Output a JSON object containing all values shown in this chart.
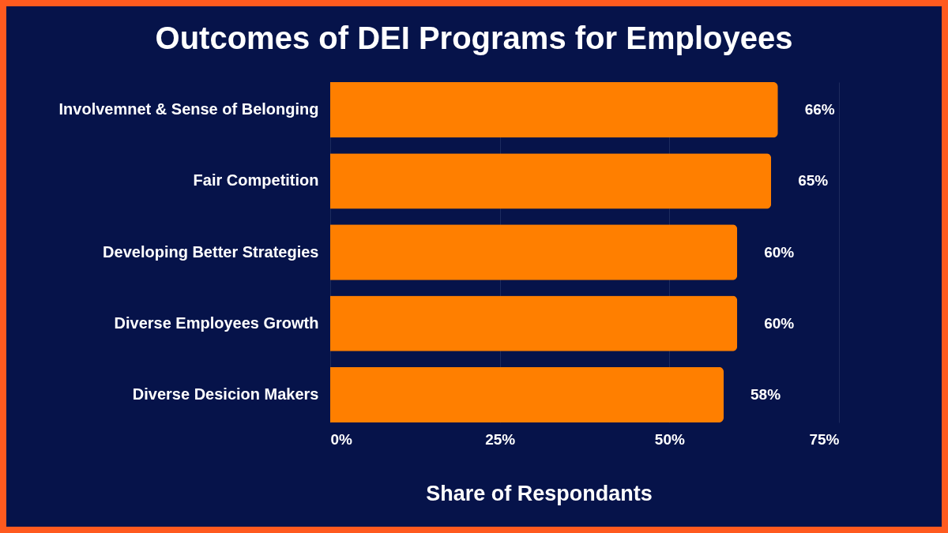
{
  "chart_data": {
    "type": "bar",
    "orientation": "horizontal",
    "title": "Outcomes of DEI Programs for Employees",
    "xlabel": "Share of Respondants",
    "categories": [
      "Involvemnet & Sense of Belonging",
      "Fair Competition",
      "Developing Better Strategies",
      "Diverse Employees Growth",
      "Diverse Desicion Makers"
    ],
    "values": [
      66,
      65,
      60,
      60,
      58
    ],
    "value_labels": [
      "66%",
      "65%",
      "60%",
      "60%",
      "58%"
    ],
    "color": "#ff7f00",
    "xlim": [
      0,
      75
    ],
    "xticks": [
      {
        "value": 0,
        "label": "0%"
      },
      {
        "value": 25,
        "label": "25%"
      },
      {
        "value": 50,
        "label": "50%"
      },
      {
        "value": 75,
        "label": "75%"
      }
    ],
    "grid": "x"
  }
}
